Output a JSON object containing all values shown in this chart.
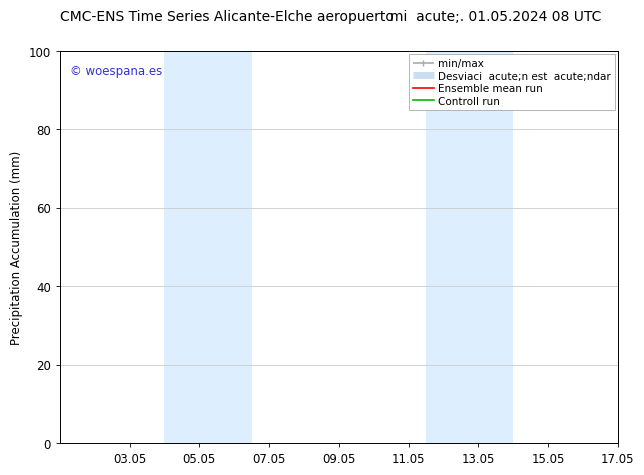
{
  "title_left": "CMC-ENS Time Series Alicante-Elche aeropuerto",
  "title_right": "mi  acute;. 01.05.2024 08 UTC",
  "ylabel": "Precipitation Accumulation (mm)",
  "ylim": [
    0,
    100
  ],
  "yticks": [
    0,
    20,
    40,
    60,
    80,
    100
  ],
  "xtick_labels": [
    "03.05",
    "05.05",
    "07.05",
    "09.05",
    "11.05",
    "13.05",
    "15.05",
    "17.05"
  ],
  "xtick_positions": [
    2,
    4,
    6,
    8,
    10,
    12,
    14,
    16
  ],
  "xlim": [
    0,
    16
  ],
  "shaded_bands": [
    {
      "x_start": 3.0,
      "x_end": 5.5,
      "color": "#ddeeff"
    },
    {
      "x_start": 10.5,
      "x_end": 13.0,
      "color": "#ddeeff"
    }
  ],
  "watermark_text": "© woespana.es",
  "watermark_color": "#3333cc",
  "legend_entries": [
    {
      "label": "min/max",
      "color": "#aaaaaa",
      "lw": 1.2
    },
    {
      "label": "Desviaci  acute;n est  acute;ndar",
      "color": "#ccddf0",
      "lw": 5
    },
    {
      "label": "Ensemble mean run",
      "color": "#ff0000",
      "lw": 1.2
    },
    {
      "label": "Controll run",
      "color": "#00bb00",
      "lw": 1.2
    }
  ],
  "bg_color": "#ffffff",
  "grid_color": "#cccccc",
  "tick_color": "#000000",
  "font_size_title": 10,
  "font_size_legend": 7.5,
  "font_size_ticks": 8.5,
  "font_size_ylabel": 8.5,
  "font_size_watermark": 8.5
}
